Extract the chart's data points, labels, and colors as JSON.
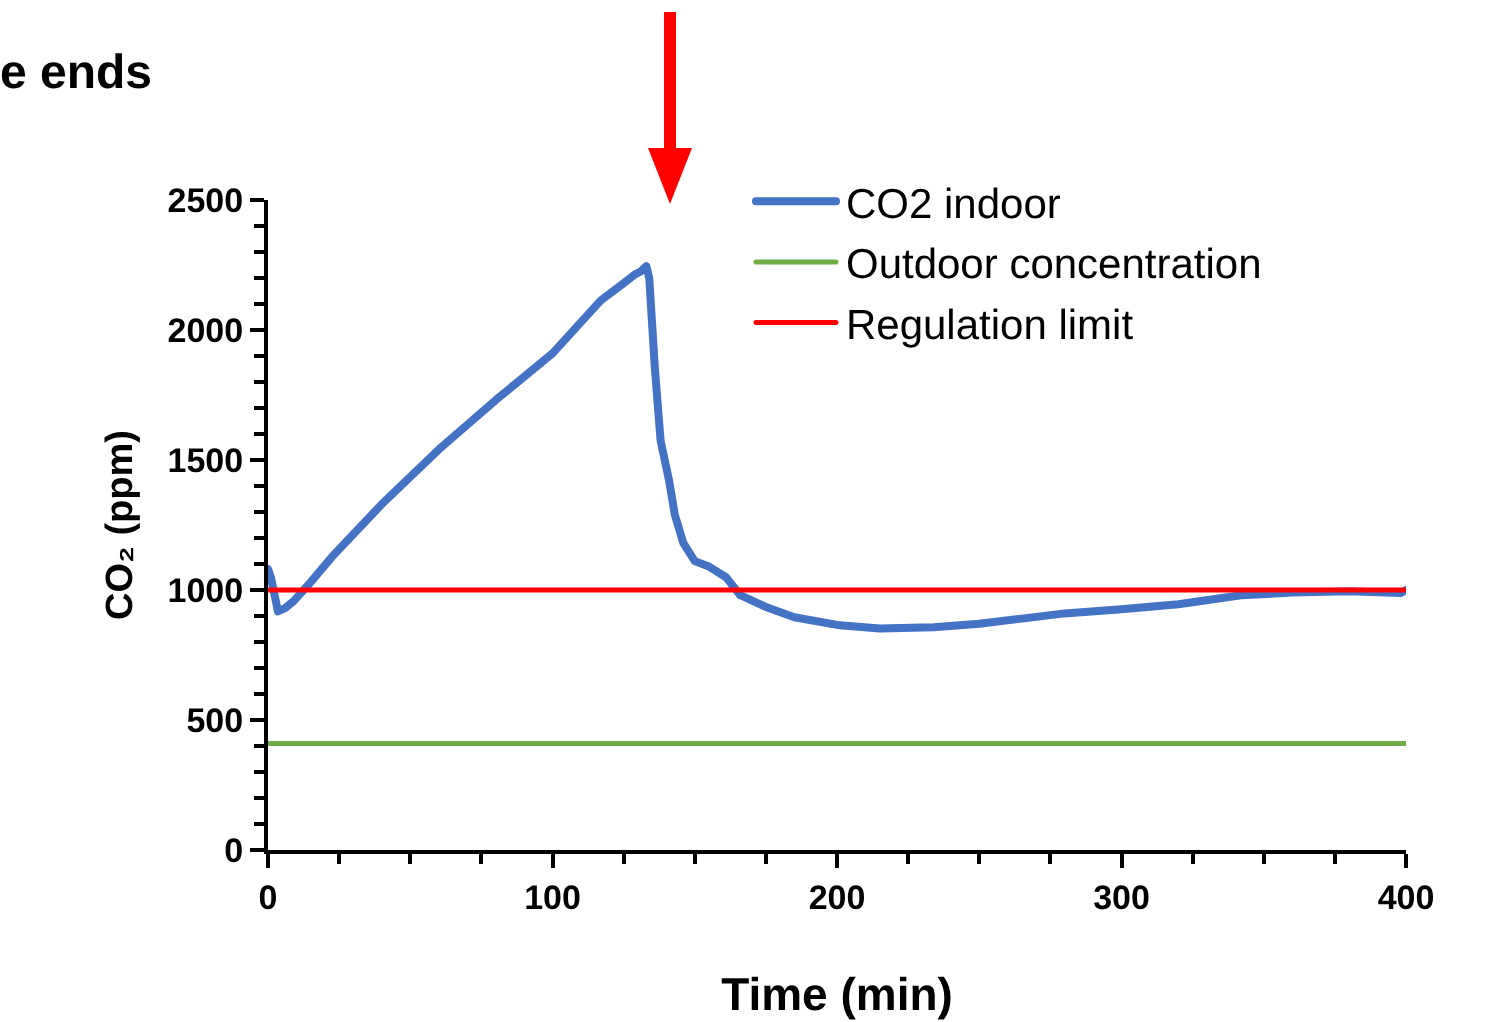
{
  "chart_data": {
    "type": "line",
    "title": "e ends",
    "xlabel": "Time (min)",
    "ylabel": "CO₂ (ppm)",
    "xlim": [
      0,
      400
    ],
    "xticks": [
      0,
      100,
      200,
      300,
      400
    ],
    "ylim": [
      0,
      2500
    ],
    "yticks": [
      0,
      500,
      1000,
      1500,
      2000,
      2500
    ],
    "grid": false,
    "legend": "top right",
    "marker": "none",
    "line_style": "solid",
    "series": [
      {
        "name": "CO2 indoor",
        "color": "#4472c4",
        "x": [
          0,
          1,
          3.5,
          6,
          9,
          15,
          23,
          40,
          60,
          80,
          100,
          117,
          125,
          129,
          131,
          133,
          134,
          136,
          138,
          141,
          143,
          146,
          150,
          155,
          161,
          166,
          175,
          185,
          201,
          215,
          234,
          250,
          265,
          280,
          300,
          320,
          342,
          360,
          380,
          398,
          400
        ],
        "values": [
          1080,
          1050,
          918,
          930,
          957,
          1030,
          1134,
          1330,
          1540,
          1730,
          1910,
          2114,
          2180,
          2214,
          2225,
          2245,
          2200,
          1850,
          1574,
          1420,
          1289,
          1180,
          1111,
          1090,
          1049,
          980,
          935,
          895,
          864,
          852,
          857,
          870,
          890,
          910,
          926,
          945,
          980,
          990,
          995,
          988,
          1000
        ]
      },
      {
        "name": "Outdoor concentration",
        "color": "#70ad47",
        "x": [
          0,
          400
        ],
        "values": [
          410,
          410
        ]
      },
      {
        "name": "Regulation limit",
        "color": "#ff0000",
        "x": [
          0,
          400
        ],
        "values": [
          1000,
          1000
        ]
      }
    ]
  }
}
